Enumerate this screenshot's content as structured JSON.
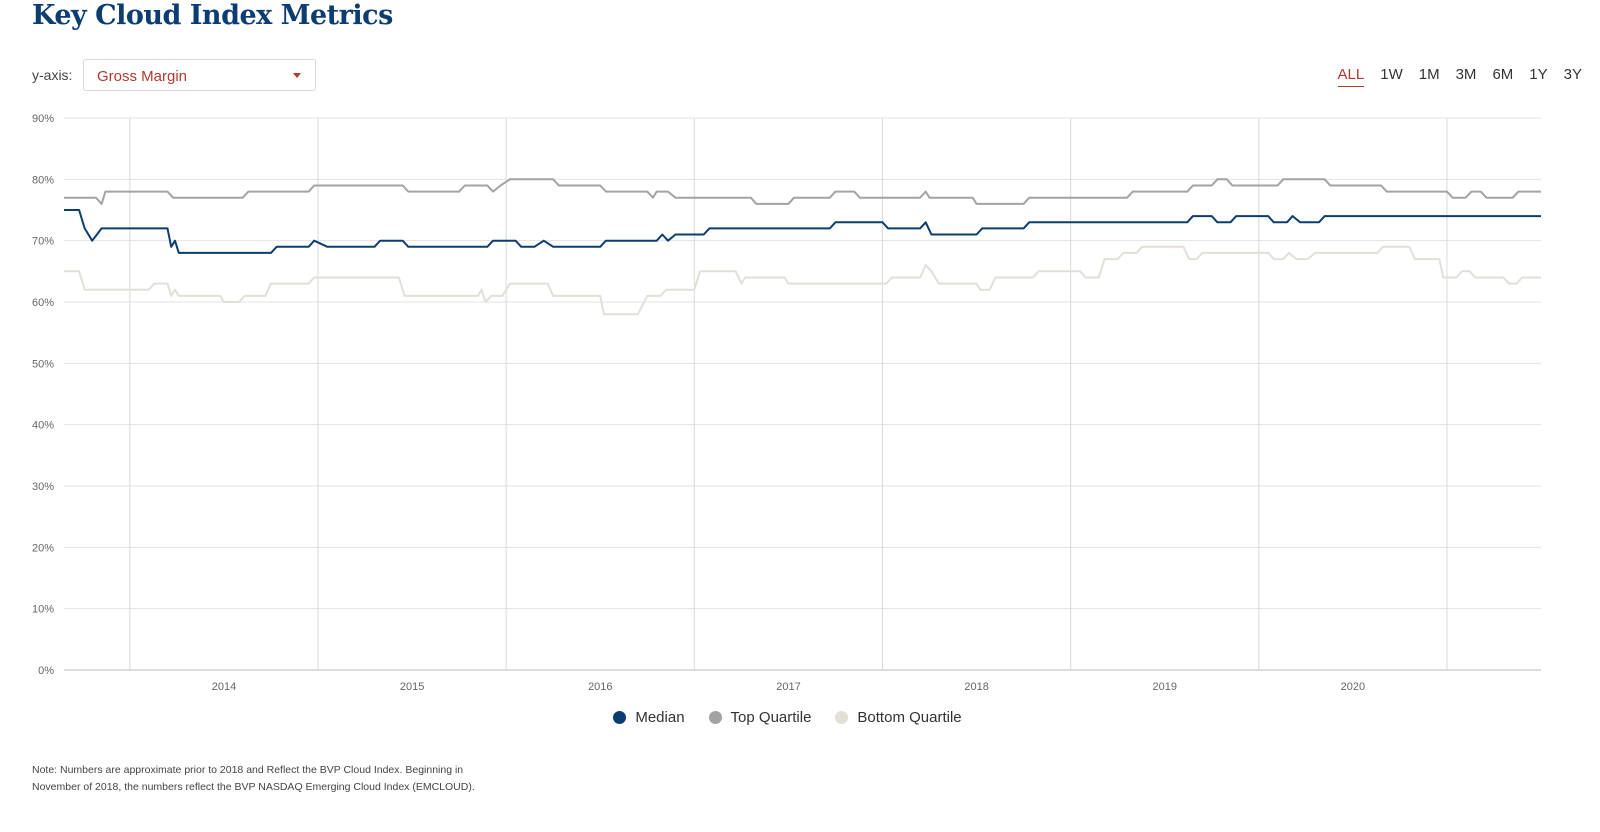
{
  "page": {
    "title": "Key Cloud Index Metrics",
    "yaxis_label": "y-axis:",
    "metric_select": {
      "value": "Gross Margin"
    },
    "ranges": [
      "ALL",
      "1W",
      "1M",
      "3M",
      "6M",
      "1Y",
      "3Y"
    ],
    "active_range": "ALL",
    "note": "Note: Numbers are approximate prior to 2018 and Reflect the BVP Cloud Index. Beginning in November of 2018, the numbers reflect the BVP NASDAQ Emerging Cloud Index (EMCLOUD).",
    "colors": {
      "title": "#0b3d73",
      "accent": "#b03a2e",
      "grid": "#e3e3e3",
      "axis": "#bbbbbb"
    }
  },
  "chart_data": {
    "type": "line",
    "title": "",
    "xlabel": "",
    "ylabel": "",
    "x_start": 2013.15,
    "x_end": 2021.0,
    "ylim": [
      0,
      90
    ],
    "y_ticks": [
      0,
      10,
      20,
      30,
      40,
      50,
      60,
      70,
      80,
      90
    ],
    "y_tick_labels": [
      "0%",
      "10%",
      "20%",
      "30%",
      "40%",
      "50%",
      "60%",
      "70%",
      "80%",
      "90%"
    ],
    "x_tick_labels": [
      "2014",
      "2015",
      "2016",
      "2017",
      "2018",
      "2019",
      "2020"
    ],
    "vertical_grid_years": [
      2013.5,
      2014.5,
      2015.5,
      2016.5,
      2017.5,
      2018.5,
      2019.5,
      2020.5
    ],
    "grid": true,
    "legend_position": "bottom",
    "series": [
      {
        "name": "Median",
        "color": "#0b3d73",
        "points": [
          [
            2013.15,
            75
          ],
          [
            2013.23,
            75
          ],
          [
            2013.26,
            72
          ],
          [
            2013.3,
            70
          ],
          [
            2013.35,
            72
          ],
          [
            2013.7,
            72
          ],
          [
            2013.72,
            69
          ],
          [
            2013.74,
            70
          ],
          [
            2013.76,
            68
          ],
          [
            2014.25,
            68
          ],
          [
            2014.28,
            69
          ],
          [
            2014.45,
            69
          ],
          [
            2014.48,
            70
          ],
          [
            2014.55,
            69
          ],
          [
            2014.8,
            69
          ],
          [
            2014.83,
            70
          ],
          [
            2014.95,
            70
          ],
          [
            2014.98,
            69
          ],
          [
            2015.4,
            69
          ],
          [
            2015.43,
            70
          ],
          [
            2015.55,
            70
          ],
          [
            2015.58,
            69
          ],
          [
            2015.65,
            69
          ],
          [
            2015.7,
            70
          ],
          [
            2015.75,
            69
          ],
          [
            2016.0,
            69
          ],
          [
            2016.03,
            70
          ],
          [
            2016.3,
            70
          ],
          [
            2016.33,
            71
          ],
          [
            2016.36,
            70
          ],
          [
            2016.4,
            71
          ],
          [
            2016.55,
            71
          ],
          [
            2016.58,
            72
          ],
          [
            2017.22,
            72
          ],
          [
            2017.25,
            73
          ],
          [
            2017.5,
            73
          ],
          [
            2017.53,
            72
          ],
          [
            2017.7,
            72
          ],
          [
            2017.73,
            73
          ],
          [
            2017.76,
            71
          ],
          [
            2018.0,
            71
          ],
          [
            2018.03,
            72
          ],
          [
            2018.25,
            72
          ],
          [
            2018.28,
            73
          ],
          [
            2019.12,
            73
          ],
          [
            2019.15,
            74
          ],
          [
            2019.25,
            74
          ],
          [
            2019.28,
            73
          ],
          [
            2019.35,
            73
          ],
          [
            2019.38,
            74
          ],
          [
            2019.55,
            74
          ],
          [
            2019.58,
            73
          ],
          [
            2019.65,
            73
          ],
          [
            2019.68,
            74
          ],
          [
            2019.72,
            73
          ],
          [
            2019.82,
            73
          ],
          [
            2019.85,
            74
          ],
          [
            2021.0,
            74
          ]
        ]
      },
      {
        "name": "Top Quartile",
        "color": "#a3a3a3",
        "points": [
          [
            2013.15,
            77
          ],
          [
            2013.32,
            77
          ],
          [
            2013.35,
            76
          ],
          [
            2013.37,
            78
          ],
          [
            2013.7,
            78
          ],
          [
            2013.73,
            77
          ],
          [
            2014.1,
            77
          ],
          [
            2014.13,
            78
          ],
          [
            2014.45,
            78
          ],
          [
            2014.48,
            79
          ],
          [
            2014.95,
            79
          ],
          [
            2014.98,
            78
          ],
          [
            2015.25,
            78
          ],
          [
            2015.28,
            79
          ],
          [
            2015.4,
            79
          ],
          [
            2015.43,
            78
          ],
          [
            2015.47,
            79
          ],
          [
            2015.52,
            80
          ],
          [
            2015.75,
            80
          ],
          [
            2015.78,
            79
          ],
          [
            2016.0,
            79
          ],
          [
            2016.03,
            78
          ],
          [
            2016.25,
            78
          ],
          [
            2016.28,
            77
          ],
          [
            2016.3,
            78
          ],
          [
            2016.36,
            78
          ],
          [
            2016.4,
            77
          ],
          [
            2016.8,
            77
          ],
          [
            2016.83,
            76
          ],
          [
            2017.0,
            76
          ],
          [
            2017.03,
            77
          ],
          [
            2017.22,
            77
          ],
          [
            2017.25,
            78
          ],
          [
            2017.35,
            78
          ],
          [
            2017.38,
            77
          ],
          [
            2017.7,
            77
          ],
          [
            2017.73,
            78
          ],
          [
            2017.75,
            77
          ],
          [
            2017.98,
            77
          ],
          [
            2018.0,
            76
          ],
          [
            2018.25,
            76
          ],
          [
            2018.28,
            77
          ],
          [
            2018.8,
            77
          ],
          [
            2018.83,
            78
          ],
          [
            2019.12,
            78
          ],
          [
            2019.15,
            79
          ],
          [
            2019.25,
            79
          ],
          [
            2019.28,
            80
          ],
          [
            2019.33,
            80
          ],
          [
            2019.36,
            79
          ],
          [
            2019.6,
            79
          ],
          [
            2019.63,
            80
          ],
          [
            2019.85,
            80
          ],
          [
            2019.88,
            79
          ],
          [
            2020.15,
            79
          ],
          [
            2020.18,
            78
          ],
          [
            2020.5,
            78
          ],
          [
            2020.53,
            77
          ],
          [
            2020.6,
            77
          ],
          [
            2020.63,
            78
          ],
          [
            2020.68,
            78
          ],
          [
            2020.71,
            77
          ],
          [
            2020.85,
            77
          ],
          [
            2020.88,
            78
          ],
          [
            2021.0,
            78
          ]
        ]
      },
      {
        "name": "Bottom Quartile",
        "color": "#e2dfd6",
        "points": [
          [
            2013.15,
            65
          ],
          [
            2013.23,
            65
          ],
          [
            2013.26,
            62
          ],
          [
            2013.6,
            62
          ],
          [
            2013.63,
            63
          ],
          [
            2013.7,
            63
          ],
          [
            2013.72,
            61
          ],
          [
            2013.74,
            62
          ],
          [
            2013.76,
            61
          ],
          [
            2013.98,
            61
          ],
          [
            2014.0,
            60
          ],
          [
            2014.08,
            60
          ],
          [
            2014.11,
            61
          ],
          [
            2014.22,
            61
          ],
          [
            2014.25,
            63
          ],
          [
            2014.45,
            63
          ],
          [
            2014.48,
            64
          ],
          [
            2014.93,
            64
          ],
          [
            2014.96,
            61
          ],
          [
            2015.35,
            61
          ],
          [
            2015.37,
            62
          ],
          [
            2015.39,
            60
          ],
          [
            2015.42,
            61
          ],
          [
            2015.48,
            61
          ],
          [
            2015.52,
            63
          ],
          [
            2015.72,
            63
          ],
          [
            2015.75,
            61
          ],
          [
            2016.0,
            61
          ],
          [
            2016.02,
            58
          ],
          [
            2016.2,
            58
          ],
          [
            2016.25,
            61
          ],
          [
            2016.32,
            61
          ],
          [
            2016.35,
            62
          ],
          [
            2016.5,
            62
          ],
          [
            2016.53,
            65
          ],
          [
            2016.72,
            65
          ],
          [
            2016.75,
            63
          ],
          [
            2016.77,
            64
          ],
          [
            2016.98,
            64
          ],
          [
            2017.0,
            63
          ],
          [
            2017.52,
            63
          ],
          [
            2017.55,
            64
          ],
          [
            2017.7,
            64
          ],
          [
            2017.73,
            66
          ],
          [
            2017.76,
            65
          ],
          [
            2017.8,
            63
          ],
          [
            2018.0,
            63
          ],
          [
            2018.02,
            62
          ],
          [
            2018.07,
            62
          ],
          [
            2018.1,
            64
          ],
          [
            2018.3,
            64
          ],
          [
            2018.33,
            65
          ],
          [
            2018.55,
            65
          ],
          [
            2018.58,
            64
          ],
          [
            2018.65,
            64
          ],
          [
            2018.68,
            67
          ],
          [
            2018.75,
            67
          ],
          [
            2018.78,
            68
          ],
          [
            2018.85,
            68
          ],
          [
            2018.88,
            69
          ],
          [
            2019.1,
            69
          ],
          [
            2019.13,
            67
          ],
          [
            2019.17,
            67
          ],
          [
            2019.2,
            68
          ],
          [
            2019.55,
            68
          ],
          [
            2019.58,
            67
          ],
          [
            2019.63,
            67
          ],
          [
            2019.66,
            68
          ],
          [
            2019.7,
            67
          ],
          [
            2019.76,
            67
          ],
          [
            2019.8,
            68
          ],
          [
            2020.13,
            68
          ],
          [
            2020.16,
            69
          ],
          [
            2020.3,
            69
          ],
          [
            2020.33,
            67
          ],
          [
            2020.46,
            67
          ],
          [
            2020.48,
            64
          ],
          [
            2020.55,
            64
          ],
          [
            2020.58,
            65
          ],
          [
            2020.62,
            65
          ],
          [
            2020.65,
            64
          ],
          [
            2020.8,
            64
          ],
          [
            2020.83,
            63
          ],
          [
            2020.87,
            63
          ],
          [
            2020.9,
            64
          ],
          [
            2021.0,
            64
          ]
        ]
      }
    ]
  }
}
